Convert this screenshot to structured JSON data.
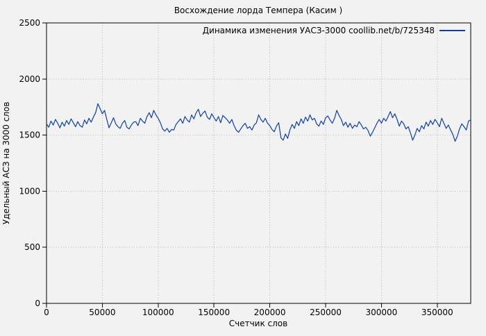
{
  "colors": {
    "background": "#f2f2f2",
    "plot_border": "#000000",
    "grid": "#b4b4b4",
    "line": "#0f3ea6",
    "text": "#000000"
  },
  "chart_data": {
    "type": "line",
    "title": "Восхождение лорда Темпера (Касим )",
    "xlabel": "Счетчик слов",
    "ylabel": "Удельный АСЗ на 3000 слов",
    "legend": {
      "label": "Динамика изменения УАСЗ-3000 coollib.net/b/725348",
      "position": "top-right-inside"
    },
    "grid": true,
    "grid_style": "dotted",
    "xlim": [
      0,
      380000
    ],
    "ylim": [
      0,
      2500
    ],
    "xticks": [
      0,
      50000,
      100000,
      150000,
      200000,
      250000,
      300000,
      350000
    ],
    "xtick_labels": [
      "0",
      "50000",
      "100000",
      "150000",
      "200000",
      "250000",
      "300000",
      "350000"
    ],
    "yticks": [
      0,
      500,
      1000,
      1500,
      2000,
      2500
    ],
    "ytick_labels": [
      "0",
      "500",
      "1000",
      "1500",
      "2000",
      "2500"
    ],
    "series": [
      {
        "name": "Динамика изменения УАСЗ-3000 coollib.net/b/725348",
        "x_start": 0,
        "x_step": 2000,
        "values": [
          1600,
          1570,
          1625,
          1590,
          1640,
          1605,
          1565,
          1615,
          1580,
          1630,
          1595,
          1645,
          1610,
          1575,
          1620,
          1585,
          1570,
          1635,
          1600,
          1650,
          1615,
          1660,
          1700,
          1780,
          1735,
          1690,
          1720,
          1640,
          1565,
          1610,
          1655,
          1600,
          1575,
          1560,
          1605,
          1630,
          1570,
          1555,
          1590,
          1615,
          1620,
          1585,
          1650,
          1625,
          1605,
          1665,
          1700,
          1655,
          1720,
          1680,
          1650,
          1610,
          1555,
          1535,
          1560,
          1525,
          1550,
          1545,
          1595,
          1620,
          1645,
          1605,
          1665,
          1635,
          1615,
          1680,
          1645,
          1700,
          1730,
          1665,
          1695,
          1715,
          1660,
          1640,
          1690,
          1655,
          1625,
          1665,
          1610,
          1675,
          1655,
          1635,
          1605,
          1640,
          1585,
          1545,
          1525,
          1555,
          1585,
          1605,
          1560,
          1575,
          1545,
          1590,
          1610,
          1680,
          1640,
          1615,
          1650,
          1605,
          1585,
          1550,
          1530,
          1580,
          1610,
          1475,
          1455,
          1510,
          1470,
          1545,
          1595,
          1560,
          1620,
          1585,
          1645,
          1605,
          1660,
          1625,
          1680,
          1635,
          1650,
          1600,
          1580,
          1625,
          1595,
          1655,
          1670,
          1635,
          1605,
          1650,
          1720,
          1675,
          1640,
          1585,
          1615,
          1570,
          1605,
          1560,
          1590,
          1575,
          1620,
          1590,
          1555,
          1570,
          1540,
          1490,
          1525,
          1565,
          1605,
          1640,
          1605,
          1650,
          1625,
          1665,
          1710,
          1655,
          1690,
          1640,
          1580,
          1625,
          1600,
          1555,
          1575,
          1520,
          1455,
          1500,
          1560,
          1530,
          1585,
          1555,
          1615,
          1580,
          1630,
          1595,
          1640,
          1610,
          1575,
          1650,
          1605,
          1560,
          1590,
          1545,
          1505,
          1445,
          1490,
          1555,
          1600,
          1575,
          1545,
          1625,
          1635
        ]
      }
    ]
  }
}
